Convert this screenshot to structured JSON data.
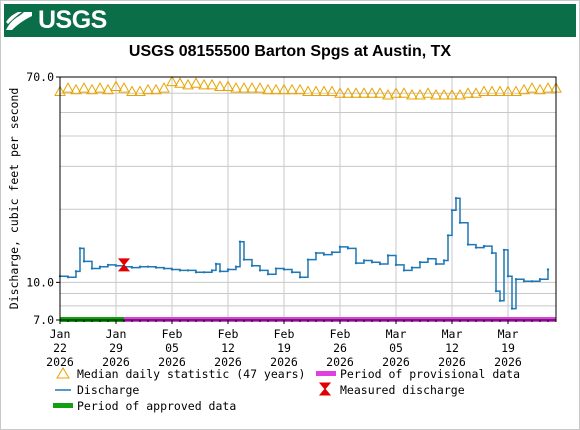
{
  "header": {
    "logo_text": "USGS"
  },
  "chart_data": {
    "type": "line",
    "title": "USGS 08155500 Barton Spgs at Austin, TX",
    "ylabel": "Discharge, cubic feet per second",
    "xlabel": "",
    "y_scale": "log",
    "ylim": [
      7.0,
      70.0
    ],
    "xlim": [
      "2026-01-22",
      "2026-03-25"
    ],
    "grid": true,
    "y_tick_labels": [
      "70.0",
      "10.0",
      "7.0"
    ],
    "y_ticks": [
      70,
      10,
      7
    ],
    "x_ticks": [
      {
        "date": "2026-01-22",
        "line1": "Jan",
        "line2": "22",
        "line3": "2026"
      },
      {
        "date": "2026-01-29",
        "line1": "Jan",
        "line2": "29",
        "line3": "2026"
      },
      {
        "date": "2026-02-05",
        "line1": "Feb",
        "line2": "05",
        "line3": "2026"
      },
      {
        "date": "2026-02-12",
        "line1": "Feb",
        "line2": "12",
        "line3": "2026"
      },
      {
        "date": "2026-02-19",
        "line1": "Feb",
        "line2": "19",
        "line3": "2026"
      },
      {
        "date": "2026-02-26",
        "line1": "Feb",
        "line2": "26",
        "line3": "2026"
      },
      {
        "date": "2026-03-05",
        "line1": "Mar",
        "line2": "05",
        "line3": "2026"
      },
      {
        "date": "2026-03-12",
        "line1": "Mar",
        "line2": "12",
        "line3": "2026"
      },
      {
        "date": "2026-03-19",
        "line1": "Mar",
        "line2": "19",
        "line3": "2026"
      }
    ],
    "colors": {
      "median": "#e8a400",
      "discharge": "#1f77b4",
      "measured": "#e00000",
      "provisional": "#e040e0",
      "approved": "#12a012"
    },
    "series": [
      {
        "name": "Median daily statistic (47 years)",
        "kind": "median",
        "x": [
          "2026-01-22",
          "2026-01-23",
          "2026-01-24",
          "2026-01-25",
          "2026-01-26",
          "2026-01-27",
          "2026-01-28",
          "2026-01-29",
          "2026-01-30",
          "2026-01-31",
          "2026-02-01",
          "2026-02-02",
          "2026-02-03",
          "2026-02-04",
          "2026-02-05",
          "2026-02-06",
          "2026-02-07",
          "2026-02-08",
          "2026-02-09",
          "2026-02-10",
          "2026-02-11",
          "2026-02-12",
          "2026-02-13",
          "2026-02-14",
          "2026-02-15",
          "2026-02-16",
          "2026-02-17",
          "2026-02-18",
          "2026-02-19",
          "2026-02-20",
          "2026-02-21",
          "2026-02-22",
          "2026-02-23",
          "2026-02-24",
          "2026-02-25",
          "2026-02-26",
          "2026-02-27",
          "2026-02-28",
          "2026-03-01",
          "2026-03-02",
          "2026-03-03",
          "2026-03-04",
          "2026-03-05",
          "2026-03-06",
          "2026-03-07",
          "2026-03-08",
          "2026-03-09",
          "2026-03-10",
          "2026-03-11",
          "2026-03-12",
          "2026-03-13",
          "2026-03-14",
          "2026-03-15",
          "2026-03-16",
          "2026-03-17",
          "2026-03-18",
          "2026-03-19",
          "2026-03-20",
          "2026-03-21",
          "2026-03-22",
          "2026-03-23",
          "2026-03-24",
          "2026-03-25"
        ],
        "y": [
          61,
          63,
          62,
          63,
          62,
          63,
          62,
          64,
          63,
          61,
          61,
          62,
          62,
          63,
          67,
          66,
          65,
          66,
          65,
          65,
          64,
          64,
          63,
          63,
          63,
          63,
          62,
          62,
          62,
          62,
          62,
          61,
          61,
          61,
          61,
          60,
          60,
          60,
          60,
          60,
          60,
          59,
          60,
          60,
          59,
          59,
          60,
          59,
          59,
          59,
          59,
          60,
          60,
          61,
          61,
          61,
          61,
          61,
          62,
          63,
          62,
          63,
          63
        ]
      },
      {
        "name": "Discharge",
        "kind": "discharge",
        "x": [
          "2026-01-22",
          "2026-01-23",
          "2026-01-24",
          "2026-01-24.5",
          "2026-01-25",
          "2026-01-26",
          "2026-01-27",
          "2026-01-28",
          "2026-01-29",
          "2026-01-30",
          "2026-01-31",
          "2026-02-01",
          "2026-02-02",
          "2026-02-03",
          "2026-02-04",
          "2026-02-05",
          "2026-02-06",
          "2026-02-07",
          "2026-02-08",
          "2026-02-09",
          "2026-02-10",
          "2026-02-10.5",
          "2026-02-11",
          "2026-02-12",
          "2026-02-13",
          "2026-02-13.5",
          "2026-02-14",
          "2026-02-15",
          "2026-02-16",
          "2026-02-17",
          "2026-02-18",
          "2026-02-19",
          "2026-02-20",
          "2026-02-21",
          "2026-02-22",
          "2026-02-23",
          "2026-02-24",
          "2026-02-25",
          "2026-02-26",
          "2026-02-27",
          "2026-02-28",
          "2026-03-01",
          "2026-03-02",
          "2026-03-03",
          "2026-03-04",
          "2026-03-05",
          "2026-03-06",
          "2026-03-07",
          "2026-03-08",
          "2026-03-09",
          "2026-03-10",
          "2026-03-11",
          "2026-03-11.5",
          "2026-03-12",
          "2026-03-12.5",
          "2026-03-13",
          "2026-03-14",
          "2026-03-15",
          "2026-03-16",
          "2026-03-17",
          "2026-03-17.5",
          "2026-03-18",
          "2026-03-18.5",
          "2026-03-19",
          "2026-03-19.5",
          "2026-03-20",
          "2026-03-21",
          "2026-03-22",
          "2026-03-23",
          "2026-03-24"
        ],
        "y": [
          10.6,
          10.5,
          11.1,
          13.8,
          12.2,
          11.4,
          11.6,
          11.8,
          11.7,
          11.6,
          11.5,
          11.6,
          11.6,
          11.5,
          11.4,
          11.3,
          11.2,
          11.2,
          11.0,
          11.0,
          11.2,
          11.9,
          11.1,
          11.3,
          11.6,
          14.7,
          12.4,
          11.7,
          11.2,
          10.8,
          11.4,
          11.3,
          11.0,
          10.5,
          12.4,
          13.2,
          13.0,
          13.3,
          14.0,
          13.8,
          12.0,
          12.3,
          12.1,
          11.9,
          12.9,
          11.8,
          11.2,
          11.5,
          12.1,
          12.5,
          11.9,
          12.3,
          15.6,
          19.8,
          22.2,
          17.6,
          14.3,
          13.9,
          14.1,
          13.2,
          9.2,
          8.4,
          13.6,
          10.6,
          7.8,
          10.3,
          10.1,
          10.1,
          10.3,
          11.3
        ]
      },
      {
        "name": "Measured discharge",
        "kind": "measured",
        "x": [
          "2026-01-30"
        ],
        "y": [
          11.8
        ]
      }
    ],
    "periods": [
      {
        "name": "Period of approved data",
        "kind": "approved",
        "start": "2026-01-22",
        "end": "2026-01-30"
      },
      {
        "name": "Period of provisional data",
        "kind": "provisional",
        "start": "2026-01-30",
        "end": "2026-03-25"
      }
    ],
    "legend": {
      "placement": "bottom",
      "items": [
        {
          "label": "Median daily statistic (47 years)",
          "kind": "median"
        },
        {
          "label": "Period of provisional data",
          "kind": "provisional"
        },
        {
          "label": "Discharge",
          "kind": "discharge"
        },
        {
          "label": "Measured discharge",
          "kind": "measured"
        },
        {
          "label": "Period of approved data",
          "kind": "approved"
        }
      ]
    }
  }
}
